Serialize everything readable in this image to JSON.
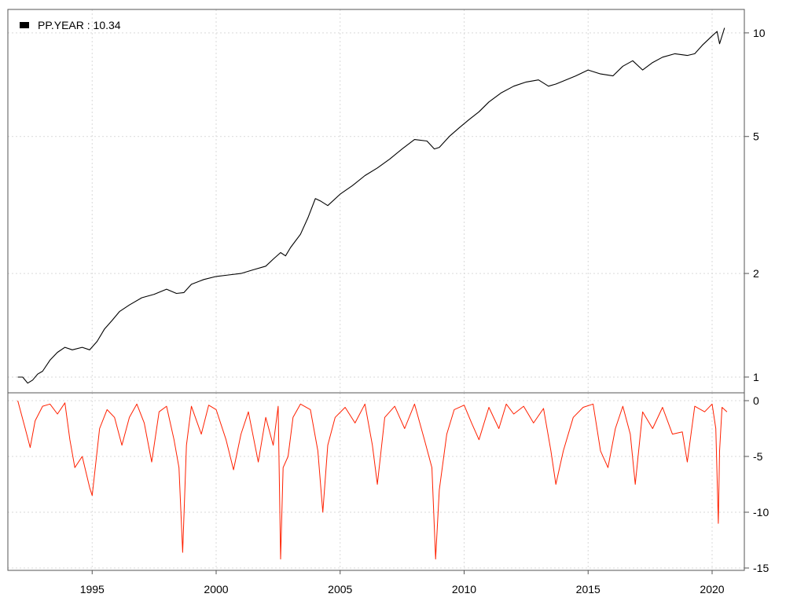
{
  "chart_data": [
    {
      "type": "line",
      "scale": "log",
      "legend": {
        "label": "PP.YEAR : 10.34",
        "position": "top-left"
      },
      "x_range": [
        1991.6,
        2021.3
      ],
      "ylim": [
        0.9,
        11.7
      ],
      "y_ticks": [
        1,
        2,
        5,
        10
      ],
      "x_ticks": [
        1995,
        2000,
        2005,
        2010,
        2015,
        2020
      ],
      "grid": true,
      "colors": {
        "series": "#000000"
      },
      "series": [
        {
          "x": [
            1992.0,
            1992.2,
            1992.4,
            1992.6,
            1992.8,
            1993.0,
            1993.3,
            1993.6,
            1993.9,
            1994.2,
            1994.6,
            1994.9,
            1995.2,
            1995.5,
            1995.8,
            1996.1,
            1996.5,
            1997.0,
            1997.5,
            1998.0,
            1998.4,
            1998.7,
            1999.0,
            1999.5,
            2000.0,
            2000.5,
            2001.0,
            2001.5,
            2002.0,
            2002.3,
            2002.6,
            2002.8,
            2003.0,
            2003.4,
            2003.7,
            2004.0,
            2004.2,
            2004.5,
            2005.0,
            2005.5,
            2006.0,
            2006.5,
            2007.0,
            2007.5,
            2008.0,
            2008.5,
            2008.8,
            2009.0,
            2009.4,
            2009.8,
            2010.2,
            2010.6,
            2011.0,
            2011.5,
            2012.0,
            2012.5,
            2013.0,
            2013.4,
            2013.7,
            2014.0,
            2014.5,
            2015.0,
            2015.5,
            2016.0,
            2016.4,
            2016.8,
            2017.2,
            2017.6,
            2018.0,
            2018.5,
            2019.0,
            2019.3,
            2019.6,
            2020.0,
            2020.2,
            2020.3,
            2020.5
          ],
          "values": [
            1.0,
            1.0,
            0.96,
            0.98,
            1.02,
            1.04,
            1.12,
            1.18,
            1.22,
            1.2,
            1.22,
            1.2,
            1.27,
            1.38,
            1.46,
            1.55,
            1.62,
            1.7,
            1.74,
            1.8,
            1.75,
            1.76,
            1.86,
            1.92,
            1.96,
            1.98,
            2.0,
            2.05,
            2.1,
            2.2,
            2.3,
            2.25,
            2.38,
            2.6,
            2.9,
            3.3,
            3.25,
            3.15,
            3.4,
            3.6,
            3.85,
            4.05,
            4.3,
            4.6,
            4.9,
            4.85,
            4.6,
            4.65,
            5.0,
            5.3,
            5.6,
            5.9,
            6.3,
            6.7,
            7.0,
            7.2,
            7.3,
            7.0,
            7.1,
            7.25,
            7.5,
            7.8,
            7.6,
            7.5,
            8.0,
            8.3,
            7.8,
            8.2,
            8.5,
            8.7,
            8.6,
            8.7,
            9.2,
            9.8,
            10.1,
            9.3,
            10.34
          ]
        }
      ]
    },
    {
      "type": "line",
      "x_range": [
        1991.6,
        2021.3
      ],
      "ylim": [
        -15,
        0
      ],
      "y_ticks": [
        0,
        -5,
        -10,
        -15
      ],
      "x_ticks": [
        1995,
        2000,
        2005,
        2010,
        2015,
        2020
      ],
      "grid": true,
      "colors": {
        "series": "#ff2000"
      },
      "series": [
        {
          "x": [
            1992.0,
            1992.3,
            1992.5,
            1992.7,
            1993.0,
            1993.3,
            1993.6,
            1993.9,
            1994.1,
            1994.3,
            1994.6,
            1994.9,
            1995.0,
            1995.3,
            1995.6,
            1995.9,
            1996.2,
            1996.5,
            1996.8,
            1997.1,
            1997.4,
            1997.7,
            1998.0,
            1998.3,
            1998.5,
            1998.65,
            1998.8,
            1999.0,
            1999.4,
            1999.7,
            2000.0,
            2000.4,
            2000.7,
            2001.0,
            2001.3,
            2001.7,
            2002.0,
            2002.3,
            2002.5,
            2002.6,
            2002.7,
            2002.9,
            2003.1,
            2003.4,
            2003.8,
            2004.1,
            2004.3,
            2004.5,
            2004.8,
            2005.2,
            2005.6,
            2006.0,
            2006.3,
            2006.5,
            2006.8,
            2007.2,
            2007.6,
            2008.0,
            2008.4,
            2008.7,
            2008.85,
            2009.0,
            2009.3,
            2009.6,
            2010.0,
            2010.3,
            2010.6,
            2011.0,
            2011.4,
            2011.7,
            2012.0,
            2012.4,
            2012.8,
            2013.2,
            2013.5,
            2013.7,
            2014.0,
            2014.4,
            2014.8,
            2015.2,
            2015.5,
            2015.8,
            2016.1,
            2016.4,
            2016.7,
            2016.9,
            2017.2,
            2017.6,
            2018.0,
            2018.4,
            2018.8,
            2019.0,
            2019.3,
            2019.7,
            2020.0,
            2020.15,
            2020.25,
            2020.3,
            2020.4,
            2020.6
          ],
          "values": [
            0,
            -2.5,
            -4.2,
            -1.8,
            -0.5,
            -0.3,
            -1.2,
            -0.2,
            -3.5,
            -6.0,
            -5.0,
            -7.8,
            -8.5,
            -2.5,
            -0.8,
            -1.5,
            -4.0,
            -1.5,
            -0.3,
            -2.0,
            -5.5,
            -1.0,
            -0.5,
            -3.5,
            -6.0,
            -13.6,
            -4.0,
            -0.5,
            -3.0,
            -0.4,
            -0.8,
            -3.5,
            -6.2,
            -3.0,
            -1.0,
            -5.5,
            -1.5,
            -4.0,
            -0.5,
            -14.2,
            -6.0,
            -5.0,
            -1.5,
            -0.3,
            -0.8,
            -4.5,
            -10.0,
            -4.0,
            -1.5,
            -0.6,
            -2.0,
            -0.3,
            -4.0,
            -7.5,
            -1.5,
            -0.5,
            -2.5,
            -0.3,
            -3.5,
            -6.0,
            -14.2,
            -8.0,
            -3.0,
            -0.8,
            -0.4,
            -2.0,
            -3.5,
            -0.6,
            -2.5,
            -0.3,
            -1.2,
            -0.5,
            -2.0,
            -0.7,
            -4.5,
            -7.5,
            -4.5,
            -1.5,
            -0.6,
            -0.3,
            -4.5,
            -6.0,
            -2.5,
            -0.5,
            -3.0,
            -7.5,
            -1.0,
            -2.5,
            -0.6,
            -3.0,
            -2.8,
            -5.5,
            -0.5,
            -1.0,
            -0.3,
            -2.5,
            -11.0,
            -4.5,
            -0.6,
            -1.0
          ]
        }
      ]
    }
  ]
}
